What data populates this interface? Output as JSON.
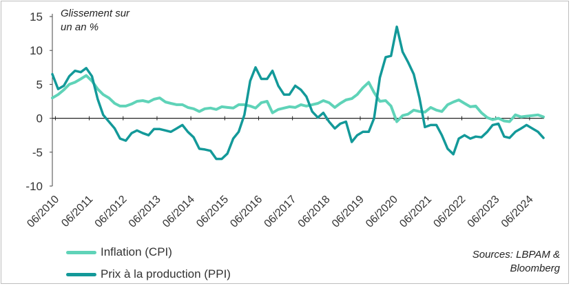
{
  "chart_data": {
    "type": "line",
    "ylabel": "Glissement sur un an %",
    "ylabel_lines": [
      "Glissement sur",
      "un an %"
    ],
    "ylim": [
      -10,
      15
    ],
    "yticks": [
      15,
      10,
      5,
      0,
      -5,
      -10
    ],
    "xlim": [
      2010.33,
      2024.85
    ],
    "xticks": [
      "06/2010",
      "06/2011",
      "06/2012",
      "06/2013",
      "06/2014",
      "06/2015",
      "06/2016",
      "06/2017",
      "06/2018",
      "06/2019",
      "06/2020",
      "06/2021",
      "06/2022",
      "06/2023",
      "06/2024"
    ],
    "xtick_values": [
      2010.42,
      2011.42,
      2012.42,
      2013.42,
      2014.42,
      2015.42,
      2016.42,
      2017.42,
      2018.42,
      2019.42,
      2020.42,
      2021.42,
      2022.42,
      2023.42,
      2024.42
    ],
    "series": [
      {
        "name": "Inflation (CPI)",
        "color": "#5fd3b8",
        "x": [
          2010.33,
          2010.5,
          2010.67,
          2010.83,
          2011.0,
          2011.17,
          2011.33,
          2011.5,
          2011.67,
          2011.83,
          2012.0,
          2012.17,
          2012.33,
          2012.5,
          2012.67,
          2012.83,
          2013.0,
          2013.17,
          2013.33,
          2013.5,
          2013.67,
          2013.83,
          2014.0,
          2014.17,
          2014.33,
          2014.5,
          2014.67,
          2014.83,
          2015.0,
          2015.17,
          2015.33,
          2015.5,
          2015.67,
          2015.83,
          2016.0,
          2016.17,
          2016.33,
          2016.5,
          2016.67,
          2016.83,
          2017.0,
          2017.17,
          2017.33,
          2017.5,
          2017.67,
          2017.83,
          2018.0,
          2018.17,
          2018.33,
          2018.5,
          2018.67,
          2018.83,
          2019.0,
          2019.17,
          2019.33,
          2019.5,
          2019.67,
          2019.83,
          2020.0,
          2020.17,
          2020.33,
          2020.5,
          2020.67,
          2020.83,
          2021.0,
          2021.17,
          2021.33,
          2021.5,
          2021.67,
          2021.83,
          2022.0,
          2022.17,
          2022.33,
          2022.5,
          2022.67,
          2022.83,
          2023.0,
          2023.17,
          2023.33,
          2023.5,
          2023.67,
          2023.83,
          2024.0,
          2024.17,
          2024.33,
          2024.5,
          2024.67,
          2024.83
        ],
        "values": [
          3.0,
          3.5,
          4.2,
          5.0,
          5.3,
          5.8,
          6.3,
          5.5,
          4.3,
          3.5,
          3.0,
          2.2,
          1.8,
          1.8,
          2.1,
          2.5,
          2.6,
          2.4,
          2.8,
          3.0,
          2.4,
          2.2,
          2.0,
          2.0,
          1.6,
          1.4,
          1.0,
          1.4,
          1.5,
          1.3,
          1.7,
          1.6,
          1.5,
          2.0,
          2.0,
          1.8,
          1.5,
          2.3,
          2.5,
          0.8,
          1.3,
          1.5,
          1.7,
          1.6,
          2.0,
          1.8,
          2.0,
          2.2,
          2.6,
          2.3,
          1.6,
          2.2,
          2.7,
          2.9,
          3.5,
          4.5,
          5.3,
          3.8,
          2.5,
          2.6,
          1.8,
          -0.5,
          0.4,
          0.6,
          1.2,
          1.0,
          0.9,
          1.6,
          1.2,
          1.0,
          2.0,
          2.4,
          2.7,
          2.2,
          1.7,
          1.8,
          0.8,
          0.1,
          -0.2,
          0.0,
          -0.4,
          -0.5,
          0.5,
          0.2,
          0.3,
          0.4,
          0.5,
          0.2
        ]
      },
      {
        "name": "Prix à la production (PPI)",
        "color": "#139999",
        "x": [
          2010.33,
          2010.5,
          2010.67,
          2010.83,
          2011.0,
          2011.17,
          2011.33,
          2011.5,
          2011.67,
          2011.83,
          2012.0,
          2012.17,
          2012.33,
          2012.5,
          2012.67,
          2012.83,
          2013.0,
          2013.17,
          2013.33,
          2013.5,
          2013.67,
          2013.83,
          2014.0,
          2014.17,
          2014.33,
          2014.5,
          2014.67,
          2014.83,
          2015.0,
          2015.17,
          2015.33,
          2015.5,
          2015.67,
          2015.83,
          2016.0,
          2016.17,
          2016.33,
          2016.5,
          2016.67,
          2016.83,
          2017.0,
          2017.17,
          2017.33,
          2017.5,
          2017.67,
          2017.83,
          2018.0,
          2018.17,
          2018.33,
          2018.5,
          2018.67,
          2018.83,
          2019.0,
          2019.17,
          2019.33,
          2019.5,
          2019.67,
          2019.83,
          2020.0,
          2020.17,
          2020.33,
          2020.5,
          2020.67,
          2020.83,
          2021.0,
          2021.17,
          2021.33,
          2021.5,
          2021.67,
          2021.83,
          2022.0,
          2022.17,
          2022.33,
          2022.5,
          2022.67,
          2022.83,
          2023.0,
          2023.17,
          2023.33,
          2023.5,
          2023.67,
          2023.83,
          2024.0,
          2024.17,
          2024.33,
          2024.5,
          2024.67,
          2024.83
        ],
        "values": [
          6.5,
          4.3,
          4.8,
          6.2,
          7.0,
          6.8,
          7.4,
          6.2,
          2.8,
          0.5,
          -0.5,
          -1.5,
          -3.0,
          -3.3,
          -2.2,
          -1.8,
          -2.2,
          -2.5,
          -1.6,
          -1.6,
          -1.8,
          -2.0,
          -1.5,
          -1.0,
          -2.0,
          -2.8,
          -4.5,
          -4.6,
          -4.8,
          -6.0,
          -6.0,
          -5.2,
          -3.0,
          -2.0,
          0.5,
          5.5,
          7.5,
          5.8,
          5.8,
          7.0,
          4.8,
          3.5,
          3.5,
          4.8,
          4.2,
          3.2,
          1.0,
          0.1,
          0.8,
          -0.5,
          -1.5,
          -0.8,
          -0.5,
          -3.5,
          -2.5,
          -2.0,
          -2.0,
          0.0,
          6.0,
          9.0,
          9.2,
          13.5,
          9.8,
          8.3,
          6.5,
          3.0,
          -1.3,
          -1.0,
          -1.0,
          -2.5,
          -4.5,
          -5.3,
          -3.0,
          -2.5,
          -3.0,
          -2.7,
          -2.8,
          -2.0,
          -1.0,
          -0.8,
          -2.7,
          -2.9,
          -2.0,
          -1.5,
          -1.0,
          -1.5,
          -2.0,
          -2.9
        ]
      }
    ]
  },
  "legend": [
    {
      "label": "Inflation (CPI)",
      "color": "#5fd3b8"
    },
    {
      "label": "Prix à la production (PPI)",
      "color": "#139999"
    }
  ],
  "source": {
    "line1": "Sources: LBPAM &",
    "line2": "Bloomberg"
  }
}
